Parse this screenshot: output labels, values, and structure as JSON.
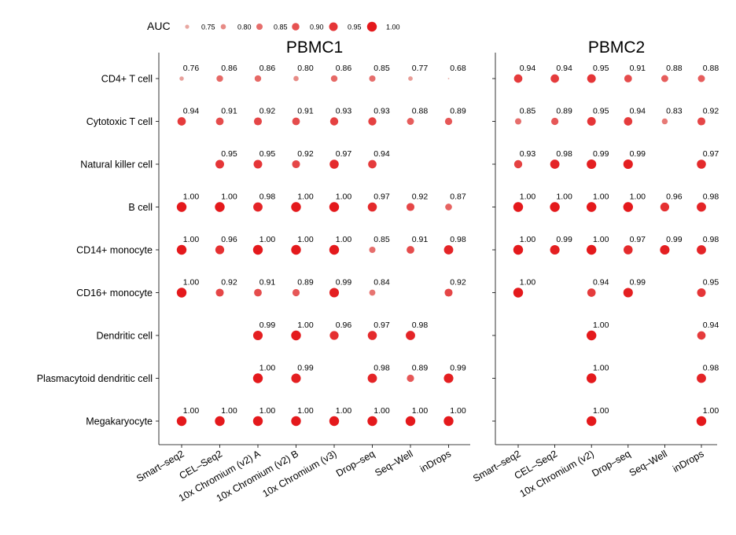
{
  "chart_data": {
    "type": "scatter",
    "legend": {
      "title": "AUC",
      "placement": "top-left",
      "entries": [
        "0.75",
        "0.80",
        "0.85",
        "0.90",
        "0.95",
        "1.00"
      ],
      "values": [
        0.75,
        0.8,
        0.85,
        0.9,
        0.95,
        1.0
      ]
    },
    "color_low": "#e8a7a1",
    "color_high": "#e4191c",
    "size_range": [
      0.75,
      1.0
    ],
    "cell_types": [
      "CD4+ T cell",
      "Cytotoxic T cell",
      "Natural killer cell",
      "B cell",
      "CD14+ monocyte",
      "CD16+ monocyte",
      "Dendritic cell",
      "Plasmacytoid dendritic cell",
      "Megakaryocyte"
    ],
    "panels": [
      {
        "title": "PBMC1",
        "methods": [
          "Smart–seq2",
          "CEL–Seq2",
          "10x Chromium (v2) A",
          "10x Chromium (v2) B",
          "10x Chromium (v3)",
          "Drop–seq",
          "Seq–Well",
          "inDrops"
        ],
        "values": [
          [
            0.76,
            0.86,
            0.86,
            0.8,
            0.86,
            0.85,
            0.77,
            0.68
          ],
          [
            0.94,
            0.91,
            0.92,
            0.91,
            0.93,
            0.93,
            0.88,
            0.89
          ],
          [
            null,
            0.95,
            0.95,
            0.92,
            0.97,
            0.94,
            null,
            null
          ],
          [
            1.0,
            1.0,
            0.98,
            1.0,
            1.0,
            0.97,
            0.92,
            0.87
          ],
          [
            1.0,
            0.96,
            1.0,
            1.0,
            1.0,
            0.85,
            0.91,
            0.98
          ],
          [
            1.0,
            0.92,
            0.91,
            0.89,
            0.99,
            0.84,
            null,
            0.92
          ],
          [
            null,
            null,
            0.99,
            1.0,
            0.96,
            0.97,
            0.98,
            null
          ],
          [
            null,
            null,
            1.0,
            0.99,
            null,
            0.98,
            0.89,
            0.99
          ],
          [
            1.0,
            1.0,
            1.0,
            1.0,
            1.0,
            1.0,
            1.0,
            1.0
          ]
        ]
      },
      {
        "title": "PBMC2",
        "methods": [
          "Smart–seq2",
          "CEL–Seq2",
          "10x Chromium (v2)",
          "Drop–seq",
          "Seq–Well",
          "inDrops"
        ],
        "values": [
          [
            0.94,
            0.94,
            0.95,
            0.91,
            0.88,
            0.88
          ],
          [
            0.85,
            0.89,
            0.95,
            0.94,
            0.83,
            0.92
          ],
          [
            0.93,
            0.98,
            0.99,
            0.99,
            null,
            0.97
          ],
          [
            1.0,
            1.0,
            1.0,
            1.0,
            0.96,
            0.98
          ],
          [
            1.0,
            0.99,
            1.0,
            0.97,
            0.99,
            0.98
          ],
          [
            1.0,
            null,
            0.94,
            0.99,
            null,
            0.95
          ],
          [
            null,
            null,
            1.0,
            null,
            null,
            0.94
          ],
          [
            null,
            null,
            1.0,
            null,
            null,
            0.98
          ],
          [
            null,
            null,
            1.0,
            null,
            null,
            1.0
          ]
        ]
      }
    ]
  }
}
